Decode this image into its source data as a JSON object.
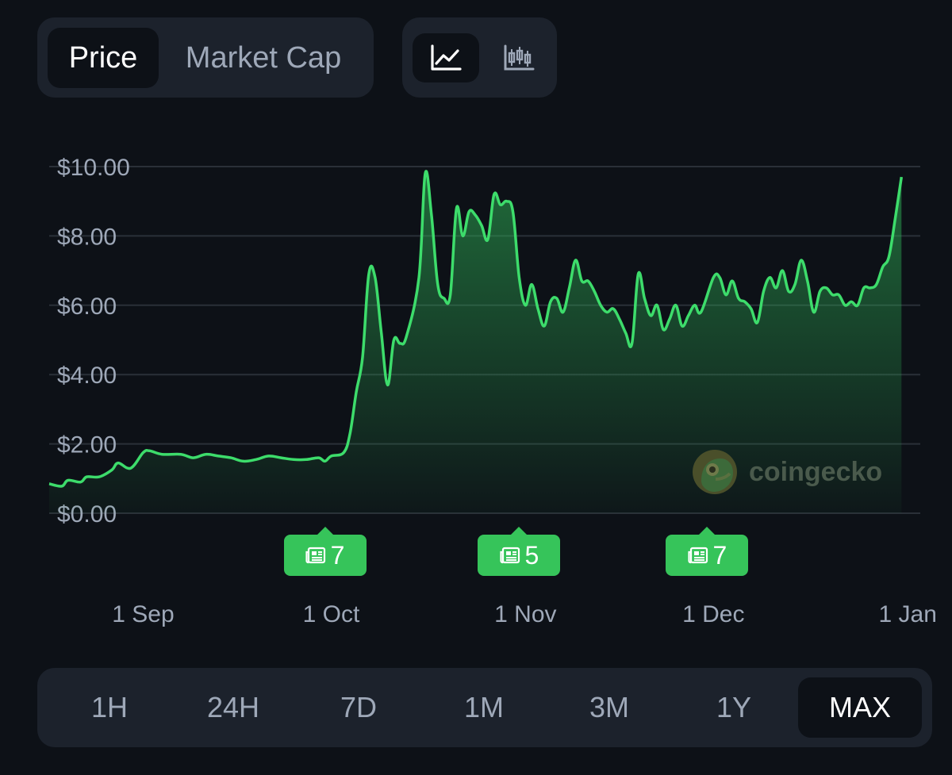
{
  "metric_toggle": {
    "options": [
      "Price",
      "Market Cap"
    ],
    "selected": "Price"
  },
  "chart_type_toggle": {
    "options": [
      "line-chart-icon",
      "candlestick-chart-icon"
    ],
    "selected": "line-chart-icon"
  },
  "watermark": {
    "text": "coingecko",
    "icon": "coingecko-logo-icon"
  },
  "news_badges": [
    {
      "count": "7",
      "date": "2023-09-30",
      "icon": "newspaper-icon"
    },
    {
      "count": "5",
      "date": "2023-10-31",
      "icon": "newspaper-icon"
    },
    {
      "count": "7",
      "date": "2023-11-30",
      "icon": "newspaper-icon"
    }
  ],
  "time_ranges": {
    "options": [
      "1H",
      "24H",
      "7D",
      "1M",
      "3M",
      "1Y",
      "MAX"
    ],
    "selected": "MAX"
  },
  "colors": {
    "line": "#3ddc6b",
    "background": "#0d1117",
    "panel": "#1c222c",
    "badge": "#36c45a",
    "grid": "#2a3038"
  },
  "chart_data": {
    "type": "area",
    "ylim": [
      0,
      10
    ],
    "y_ticks": [
      "$10.00",
      "$8.00",
      "$6.00",
      "$4.00",
      "$2.00",
      "$0.00"
    ],
    "y_tick_values": [
      10,
      8,
      6,
      4,
      2,
      0
    ],
    "x_ticks": [
      "1 Sep",
      "1 Oct",
      "1 Nov",
      "1 Dec",
      "1 Jan"
    ],
    "x_tick_dates": [
      "2023-09-01",
      "2023-10-01",
      "2023-11-01",
      "2023-12-01",
      "2024-01-01"
    ],
    "x_range": [
      "2023-08-17",
      "2024-01-03"
    ],
    "grid": true,
    "series": [
      {
        "points": [
          [
            "2023-08-17",
            0.85
          ],
          [
            "2023-08-19",
            0.78
          ],
          [
            "2023-08-20",
            0.95
          ],
          [
            "2023-08-22",
            0.9
          ],
          [
            "2023-08-23",
            1.05
          ],
          [
            "2023-08-25",
            1.05
          ],
          [
            "2023-08-27",
            1.25
          ],
          [
            "2023-08-28",
            1.45
          ],
          [
            "2023-08-30",
            1.3
          ],
          [
            "2023-09-01",
            1.75
          ],
          [
            "2023-09-02",
            1.8
          ],
          [
            "2023-09-04",
            1.7
          ],
          [
            "2023-09-07",
            1.7
          ],
          [
            "2023-09-09",
            1.6
          ],
          [
            "2023-09-11",
            1.7
          ],
          [
            "2023-09-13",
            1.65
          ],
          [
            "2023-09-15",
            1.6
          ],
          [
            "2023-09-17",
            1.5
          ],
          [
            "2023-09-19",
            1.55
          ],
          [
            "2023-09-21",
            1.65
          ],
          [
            "2023-09-23",
            1.6
          ],
          [
            "2023-09-25",
            1.55
          ],
          [
            "2023-09-27",
            1.55
          ],
          [
            "2023-09-29",
            1.6
          ],
          [
            "2023-09-30",
            1.5
          ],
          [
            "2023-10-01",
            1.65
          ],
          [
            "2023-10-03",
            1.75
          ],
          [
            "2023-10-04",
            2.3
          ],
          [
            "2023-10-05",
            3.5
          ],
          [
            "2023-10-06",
            4.5
          ],
          [
            "2023-10-07",
            6.9
          ],
          [
            "2023-10-08",
            6.8
          ],
          [
            "2023-10-09",
            5.2
          ],
          [
            "2023-10-10",
            3.7
          ],
          [
            "2023-10-11",
            5.0
          ],
          [
            "2023-10-12",
            4.9
          ],
          [
            "2023-10-13",
            5.1
          ],
          [
            "2023-10-15",
            6.8
          ],
          [
            "2023-10-16",
            9.8
          ],
          [
            "2023-10-17",
            8.6
          ],
          [
            "2023-10-18",
            6.6
          ],
          [
            "2023-10-19",
            6.2
          ],
          [
            "2023-10-20",
            6.3
          ],
          [
            "2023-10-21",
            8.8
          ],
          [
            "2023-10-22",
            8.0
          ],
          [
            "2023-10-23",
            8.7
          ],
          [
            "2023-10-24",
            8.6
          ],
          [
            "2023-10-25",
            8.3
          ],
          [
            "2023-10-26",
            7.9
          ],
          [
            "2023-10-27",
            9.2
          ],
          [
            "2023-10-28",
            8.9
          ],
          [
            "2023-10-29",
            9.0
          ],
          [
            "2023-10-30",
            8.7
          ],
          [
            "2023-10-31",
            6.8
          ],
          [
            "2023-11-01",
            6.0
          ],
          [
            "2023-11-02",
            6.6
          ],
          [
            "2023-11-03",
            5.9
          ],
          [
            "2023-11-04",
            5.4
          ],
          [
            "2023-11-05",
            6.1
          ],
          [
            "2023-11-06",
            6.2
          ],
          [
            "2023-11-07",
            5.8
          ],
          [
            "2023-11-08",
            6.5
          ],
          [
            "2023-11-09",
            7.3
          ],
          [
            "2023-11-10",
            6.7
          ],
          [
            "2023-11-11",
            6.7
          ],
          [
            "2023-11-12",
            6.4
          ],
          [
            "2023-11-13",
            6.0
          ],
          [
            "2023-11-14",
            5.8
          ],
          [
            "2023-11-15",
            5.9
          ],
          [
            "2023-11-16",
            5.6
          ],
          [
            "2023-11-17",
            5.2
          ],
          [
            "2023-11-18",
            4.9
          ],
          [
            "2023-11-19",
            6.9
          ],
          [
            "2023-11-20",
            6.2
          ],
          [
            "2023-11-21",
            5.7
          ],
          [
            "2023-11-22",
            6.0
          ],
          [
            "2023-11-23",
            5.3
          ],
          [
            "2023-11-24",
            5.6
          ],
          [
            "2023-11-25",
            6.0
          ],
          [
            "2023-11-26",
            5.4
          ],
          [
            "2023-11-27",
            5.7
          ],
          [
            "2023-11-28",
            6.0
          ],
          [
            "2023-11-29",
            5.8
          ],
          [
            "2023-12-01",
            6.8
          ],
          [
            "2023-12-02",
            6.8
          ],
          [
            "2023-12-03",
            6.3
          ],
          [
            "2023-12-04",
            6.7
          ],
          [
            "2023-12-05",
            6.2
          ],
          [
            "2023-12-06",
            6.1
          ],
          [
            "2023-12-07",
            5.9
          ],
          [
            "2023-12-08",
            5.5
          ],
          [
            "2023-12-09",
            6.4
          ],
          [
            "2023-12-10",
            6.8
          ],
          [
            "2023-12-11",
            6.5
          ],
          [
            "2023-12-12",
            7.0
          ],
          [
            "2023-12-13",
            6.4
          ],
          [
            "2023-12-14",
            6.6
          ],
          [
            "2023-12-15",
            7.3
          ],
          [
            "2023-12-16",
            6.7
          ],
          [
            "2023-12-17",
            5.8
          ],
          [
            "2023-12-18",
            6.4
          ],
          [
            "2023-12-19",
            6.5
          ],
          [
            "2023-12-20",
            6.3
          ],
          [
            "2023-12-21",
            6.3
          ],
          [
            "2023-12-22",
            6.0
          ],
          [
            "2023-12-23",
            6.1
          ],
          [
            "2023-12-24",
            6.0
          ],
          [
            "2023-12-25",
            6.5
          ],
          [
            "2023-12-26",
            6.5
          ],
          [
            "2023-12-27",
            6.6
          ],
          [
            "2023-12-28",
            7.1
          ],
          [
            "2023-12-29",
            7.4
          ],
          [
            "2023-12-30",
            8.5
          ],
          [
            "2023-12-31",
            9.7
          ]
        ]
      }
    ]
  }
}
